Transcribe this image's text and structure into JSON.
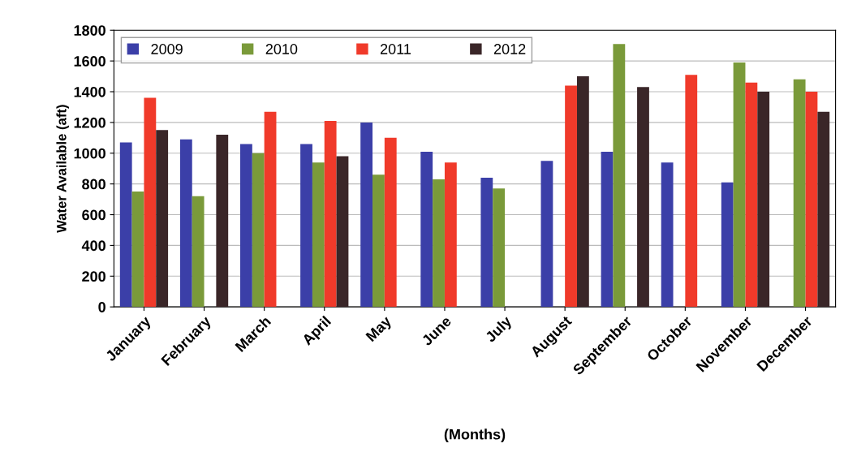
{
  "chart_data": {
    "type": "bar",
    "xlabel": "(Months)",
    "ylabel": "Water Available (aft)",
    "categories": [
      "January",
      "February",
      "March",
      "April",
      "May",
      "June",
      "July",
      "August",
      "September",
      "October",
      "November",
      "December"
    ],
    "series": [
      {
        "name": "2009",
        "color": "#3b3fa8",
        "values": [
          1070,
          1090,
          1060,
          1060,
          1200,
          1010,
          840,
          950,
          1010,
          940,
          810,
          null
        ]
      },
      {
        "name": "2010",
        "color": "#7a9a3a",
        "values": [
          750,
          720,
          1000,
          940,
          860,
          830,
          770,
          null,
          1710,
          null,
          1590,
          1480
        ]
      },
      {
        "name": "2011",
        "color": "#f03a2a",
        "values": [
          1360,
          null,
          1270,
          1210,
          1100,
          940,
          null,
          1440,
          null,
          1510,
          1460,
          1400
        ]
      },
      {
        "name": "2012",
        "color": "#3a2628",
        "values": [
          1150,
          1120,
          null,
          980,
          null,
          null,
          null,
          1500,
          1430,
          null,
          1400,
          1270
        ]
      }
    ],
    "ylim": [
      0,
      1800
    ],
    "yticks": [
      0,
      200,
      400,
      600,
      800,
      1000,
      1200,
      1400,
      1600,
      1800
    ],
    "grid": "y",
    "legend": "top left"
  }
}
